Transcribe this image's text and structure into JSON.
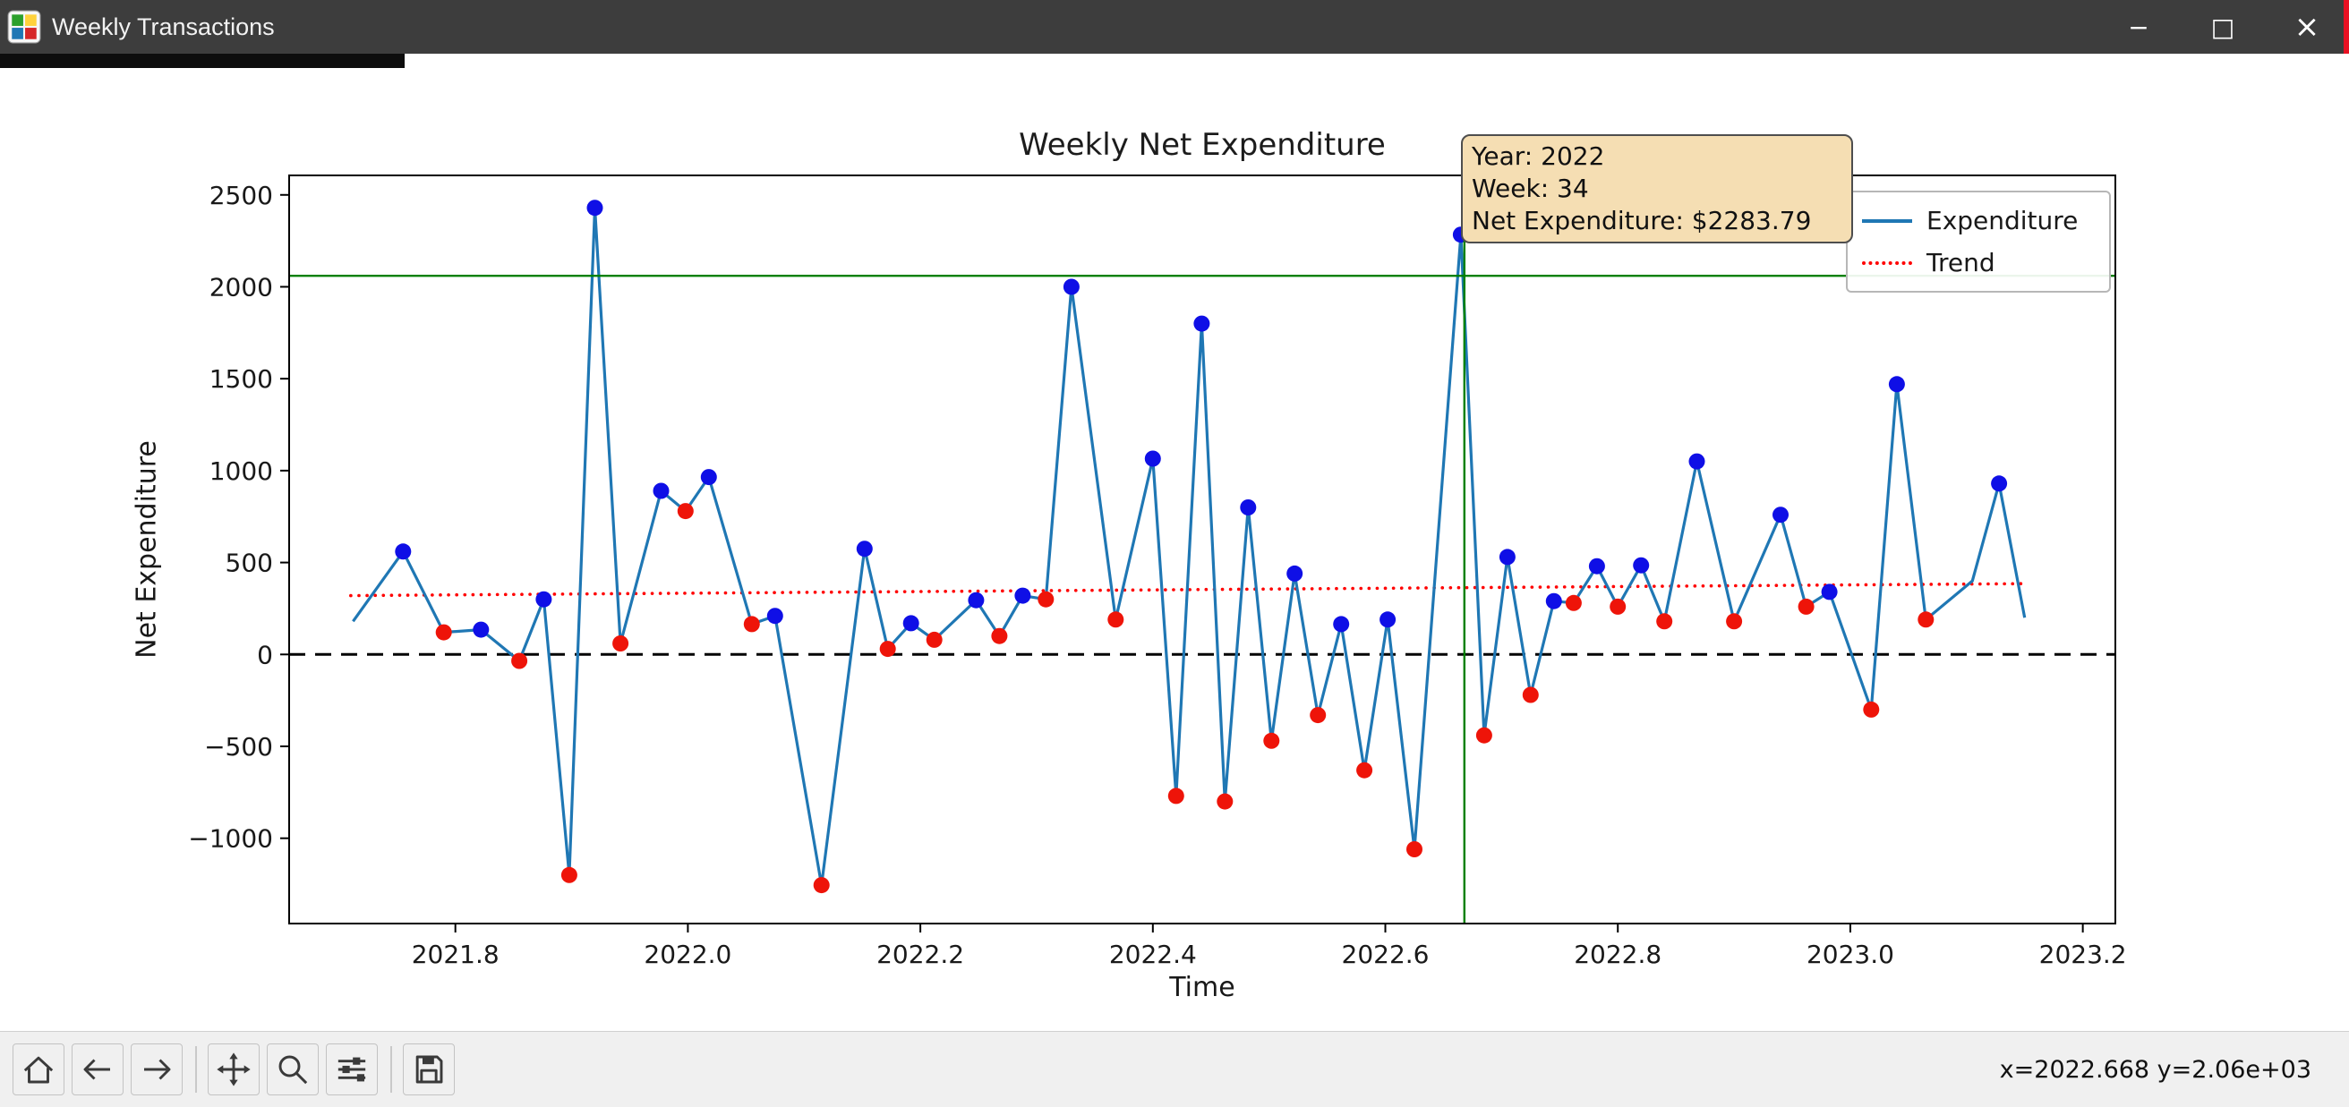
{
  "window": {
    "title": "Weekly Transactions",
    "controls": {
      "minimize": "−",
      "maximize": "□",
      "close": "×"
    }
  },
  "chart_data": {
    "type": "line",
    "title": "Weekly Net Expenditure",
    "xlabel": "Time",
    "ylabel": "Net Expenditure",
    "xlim": [
      2021.657,
      2023.228
    ],
    "ylim": [
      -1464,
      2606
    ],
    "grid": false,
    "xticks": {
      "values": [
        2021.8,
        2022.0,
        2022.2,
        2022.4,
        2022.6,
        2022.8,
        2023.0,
        2023.2
      ],
      "labels": [
        "2021.8",
        "2022.0",
        "2022.2",
        "2022.4",
        "2022.6",
        "2022.8",
        "2023.0",
        "2023.2"
      ]
    },
    "yticks": {
      "values": [
        -1000,
        -500,
        0,
        500,
        1000,
        1500,
        2000,
        2500
      ],
      "labels": [
        "−1000",
        "−500",
        "0",
        "500",
        "1000",
        "1500",
        "2000",
        "2500"
      ]
    },
    "series": [
      {
        "name": "Expenditure",
        "color": "#1f77b4",
        "style": "solid",
        "points": [
          [
            2021.712,
            180,
            null
          ],
          [
            2021.755,
            560,
            "b"
          ],
          [
            2021.79,
            120,
            "r"
          ],
          [
            2021.822,
            135,
            "b"
          ],
          [
            2021.855,
            -35,
            "r"
          ],
          [
            2021.876,
            300,
            "b"
          ],
          [
            2021.898,
            -1200,
            "r"
          ],
          [
            2021.92,
            2430,
            "b"
          ],
          [
            2021.942,
            60,
            "r"
          ],
          [
            2021.977,
            890,
            "b"
          ],
          [
            2021.998,
            780,
            "r"
          ],
          [
            2022.018,
            965,
            "b"
          ],
          [
            2022.055,
            165,
            "r"
          ],
          [
            2022.075,
            210,
            "b"
          ],
          [
            2022.115,
            -1255,
            "r"
          ],
          [
            2022.152,
            575,
            "b"
          ],
          [
            2022.172,
            30,
            "r"
          ],
          [
            2022.192,
            170,
            "b"
          ],
          [
            2022.212,
            80,
            "r"
          ],
          [
            2022.248,
            295,
            "b"
          ],
          [
            2022.268,
            100,
            "r"
          ],
          [
            2022.288,
            320,
            "b"
          ],
          [
            2022.308,
            300,
            "r"
          ],
          [
            2022.33,
            2000,
            "b"
          ],
          [
            2022.368,
            190,
            "r"
          ],
          [
            2022.4,
            1065,
            "b"
          ],
          [
            2022.42,
            -770,
            "r"
          ],
          [
            2022.442,
            1800,
            "b"
          ],
          [
            2022.462,
            -800,
            "r"
          ],
          [
            2022.482,
            800,
            "b"
          ],
          [
            2022.502,
            -470,
            "r"
          ],
          [
            2022.522,
            440,
            "b"
          ],
          [
            2022.542,
            -330,
            "r"
          ],
          [
            2022.562,
            165,
            "b"
          ],
          [
            2022.582,
            -630,
            "r"
          ],
          [
            2022.602,
            190,
            "b"
          ],
          [
            2022.625,
            -1060,
            "r"
          ],
          [
            2022.665,
            2283.79,
            "b"
          ],
          [
            2022.685,
            -440,
            "r"
          ],
          [
            2022.705,
            530,
            "b"
          ],
          [
            2022.725,
            -220,
            "r"
          ],
          [
            2022.745,
            290,
            "b"
          ],
          [
            2022.762,
            280,
            "r"
          ],
          [
            2022.782,
            480,
            "b"
          ],
          [
            2022.8,
            260,
            "r"
          ],
          [
            2022.82,
            485,
            "b"
          ],
          [
            2022.84,
            180,
            "r"
          ],
          [
            2022.868,
            1050,
            "b"
          ],
          [
            2022.9,
            180,
            "r"
          ],
          [
            2022.94,
            760,
            "b"
          ],
          [
            2022.962,
            260,
            "r"
          ],
          [
            2022.982,
            340,
            "b"
          ],
          [
            2023.018,
            -300,
            "r"
          ],
          [
            2023.04,
            1470,
            "b"
          ],
          [
            2023.065,
            190,
            "r"
          ],
          [
            2023.105,
            400,
            null
          ],
          [
            2023.128,
            930,
            "b"
          ],
          [
            2023.15,
            200,
            null
          ]
        ]
      },
      {
        "name": "Trend",
        "color": "#ff0000",
        "style": "dotted",
        "points": [
          [
            2021.71,
            320
          ],
          [
            2023.15,
            385
          ]
        ]
      }
    ],
    "marker_colors": {
      "b": "#0f0fe6",
      "r": "#ee1409"
    },
    "zero_line": {
      "y": 0,
      "color": "#000000",
      "style": "dashed"
    },
    "crosshair": {
      "x": 2022.668,
      "y": 2060,
      "color": "#008000"
    },
    "legend": {
      "position": "upper right",
      "entries": [
        "Expenditure",
        "Trend"
      ]
    },
    "tooltip": {
      "bg": "#f5deb3",
      "lines": [
        "Year: 2022",
        "Week: 34",
        "Net Expenditure: $2283.79"
      ]
    }
  },
  "toolbar": {
    "icons": [
      "home-icon",
      "back-icon",
      "forward-icon",
      "pan-icon",
      "zoom-icon",
      "subplots-icon",
      "save-icon"
    ],
    "status": "x=2022.668 y=2.06e+03"
  }
}
